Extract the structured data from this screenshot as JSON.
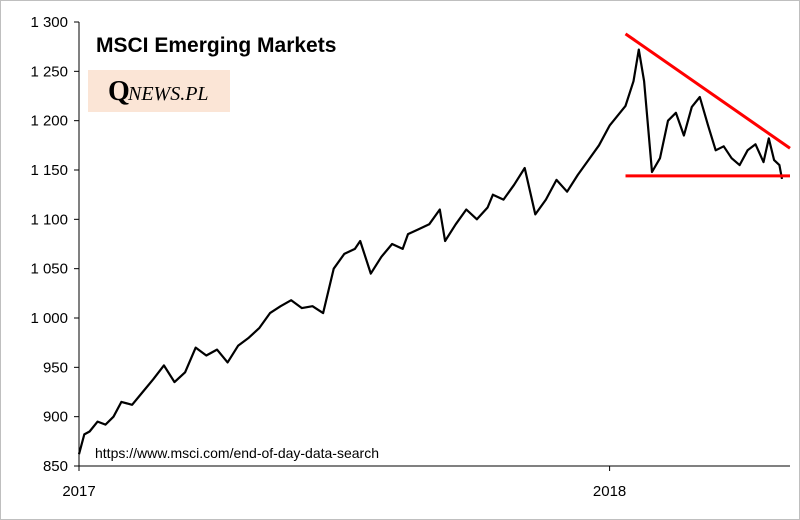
{
  "chart_data": {
    "type": "line",
    "title": "MSCI Emerging Markets",
    "xlabel": "",
    "ylabel": "",
    "ylim": [
      850,
      1300
    ],
    "yticks": [
      850,
      900,
      950,
      1000,
      1050,
      1100,
      1150,
      1200,
      1250,
      1300
    ],
    "ytick_labels": [
      "850",
      "900",
      "950",
      "1 000",
      "1 050",
      "1 100",
      "1 150",
      "1 200",
      "1 250",
      "1 300"
    ],
    "xlim": [
      2017.0,
      2018.34
    ],
    "xticks": [
      2017,
      2018
    ],
    "xtick_labels": [
      "2017",
      "2018"
    ],
    "grid": false,
    "logo": {
      "letter": "Q",
      "text": "NEWS.PL",
      "bg_color": "#fbe5d6"
    },
    "source": "https://www.msci.com/end-of-day-data-search",
    "line_color": "#000000",
    "annotation_color": "#ff0000",
    "series": [
      {
        "name": "MSCI Emerging Markets",
        "x": [
          2017.0,
          2017.01,
          2017.02,
          2017.035,
          2017.05,
          2017.065,
          2017.08,
          2017.1,
          2017.12,
          2017.14,
          2017.16,
          2017.18,
          2017.2,
          2017.22,
          2017.24,
          2017.26,
          2017.28,
          2017.3,
          2017.32,
          2017.34,
          2017.36,
          2017.38,
          2017.4,
          2017.42,
          2017.44,
          2017.46,
          2017.48,
          2017.5,
          2017.52,
          2017.53,
          2017.55,
          2017.57,
          2017.59,
          2017.61,
          2017.62,
          2017.64,
          2017.66,
          2017.68,
          2017.69,
          2017.71,
          2017.73,
          2017.75,
          2017.77,
          2017.78,
          2017.8,
          2017.82,
          2017.84,
          2017.86,
          2017.88,
          2017.9,
          2017.92,
          2017.94,
          2017.96,
          2017.98,
          2018.0,
          2018.015,
          2018.03,
          2018.045,
          2018.055,
          2018.065,
          2018.08,
          2018.095,
          2018.11,
          2018.125,
          2018.14,
          2018.155,
          2018.17,
          2018.185,
          2018.2,
          2018.215,
          2018.23,
          2018.245,
          2018.26,
          2018.275,
          2018.29,
          2018.3,
          2018.31,
          2018.32,
          2018.325
        ],
        "values": [
          862,
          882,
          885,
          895,
          892,
          900,
          915,
          912,
          925,
          938,
          952,
          935,
          945,
          970,
          962,
          968,
          955,
          972,
          980,
          990,
          1005,
          1012,
          1018,
          1010,
          1012,
          1005,
          1050,
          1065,
          1070,
          1078,
          1045,
          1062,
          1075,
          1070,
          1085,
          1090,
          1095,
          1110,
          1078,
          1095,
          1110,
          1100,
          1112,
          1125,
          1120,
          1135,
          1152,
          1105,
          1120,
          1140,
          1128,
          1145,
          1160,
          1175,
          1195,
          1205,
          1215,
          1240,
          1272,
          1240,
          1148,
          1162,
          1200,
          1208,
          1185,
          1214,
          1224,
          1196,
          1170,
          1174,
          1162,
          1155,
          1170,
          1176,
          1158,
          1182,
          1160,
          1155,
          1141
        ]
      }
    ],
    "annotations": [
      {
        "type": "trendline",
        "from": [
          2018.03,
          1288
        ],
        "to": [
          2018.34,
          1172
        ]
      },
      {
        "type": "support",
        "from": [
          2018.03,
          1144
        ],
        "to": [
          2018.34,
          1144
        ]
      }
    ]
  }
}
